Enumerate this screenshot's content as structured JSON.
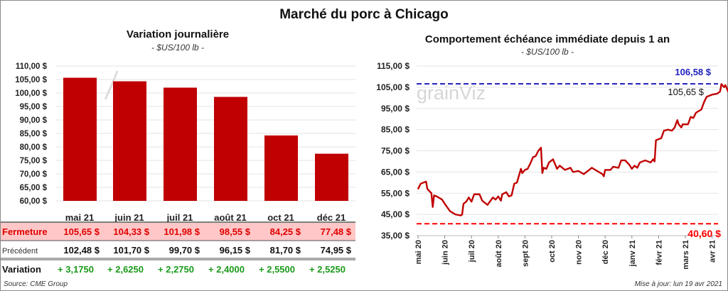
{
  "title": "Marché du porc à Chicago",
  "colors": {
    "bar": "#c00000",
    "line": "#c00000",
    "high": "#1f1fbf",
    "low": "#ff0000",
    "highlight_row": "#ffc7c7",
    "positive": "#1a9a1a"
  },
  "chart_data": [
    {
      "type": "bar",
      "title": "Variation journalière",
      "subtitle": "- $US/100 lb -",
      "categories": [
        "mai 21",
        "juin 21",
        "juil 21",
        "août 21",
        "oct 21",
        "déc 21"
      ],
      "values": [
        105.65,
        104.33,
        101.98,
        98.55,
        84.25,
        77.48
      ],
      "ylim": [
        60,
        110
      ],
      "yticks": [
        "60,00 $",
        "65,00 $",
        "70,00 $",
        "75,00 $",
        "80,00 $",
        "85,00 $",
        "90,00 $",
        "95,00 $",
        "100,00 $",
        "105,00 $",
        "110,00 $"
      ],
      "grid": true
    },
    {
      "type": "line",
      "title": "Comportement  échéance immédiate depuis 1 an",
      "subtitle": "- $US/100 lb -",
      "ylim": [
        35,
        115
      ],
      "yticks": [
        "35,00 $",
        "45,00 $",
        "55,00 $",
        "65,00 $",
        "75,00 $",
        "85,00 $",
        "95,00 $",
        "105,00 $",
        "115,00 $"
      ],
      "xticks": [
        "mai 20",
        "juin 20",
        "juil 20",
        "août 20",
        "sept 20",
        "oct 20",
        "nov 20",
        "déc 20",
        "janv 21",
        "févr 21",
        "mars 21",
        "avr 21"
      ],
      "x_unit": "months since mai 20",
      "x": [
        0,
        0.1,
        0.3,
        0.35,
        0.5,
        0.55,
        0.6,
        0.7,
        0.9,
        1.0,
        1.2,
        1.4,
        1.6,
        1.65,
        1.7,
        1.8,
        1.9,
        2.0,
        2.1,
        2.3,
        2.4,
        2.6,
        2.8,
        2.9,
        3.0,
        3.1,
        3.15,
        3.3,
        3.4,
        3.5,
        3.6,
        3.7,
        3.85,
        3.9,
        4.0,
        4.1,
        4.2,
        4.3,
        4.4,
        4.5,
        4.6,
        4.65,
        4.7,
        4.8,
        4.9,
        5.05,
        5.2,
        5.3,
        5.5,
        5.7,
        5.8,
        6.0,
        6.2,
        6.4,
        6.5,
        6.7,
        6.9,
        6.95,
        7.0,
        7.2,
        7.3,
        7.5,
        7.6,
        7.75,
        7.9,
        8.0,
        8.1,
        8.2,
        8.3,
        8.5,
        8.7,
        8.8,
        8.85,
        8.9,
        9.1,
        9.2,
        9.35,
        9.5,
        9.6,
        9.7,
        9.75,
        9.85,
        9.9,
        10.1,
        10.2,
        10.3,
        10.4,
        10.6,
        10.7,
        10.8,
        11.0,
        11.2,
        11.3,
        11.35,
        11.45,
        11.5,
        11.6,
        11.7
      ],
      "y": [
        57,
        59.5,
        60.5,
        57,
        55,
        48.5,
        54,
        53.5,
        52,
        50,
        46.5,
        45,
        44.5,
        45,
        50,
        51,
        53,
        51,
        54.5,
        54.5,
        51.5,
        49.5,
        53,
        52,
        53.5,
        51.5,
        54.5,
        55.5,
        53.5,
        54,
        59.5,
        60,
        66.5,
        64.5,
        66,
        66.5,
        69,
        72,
        72.5,
        75,
        76.5,
        64.5,
        67,
        66.5,
        69.5,
        71,
        66.5,
        68,
        66,
        67,
        65,
        65.5,
        64,
        66,
        67,
        65.5,
        64,
        63,
        66,
        66,
        67.5,
        67,
        70.5,
        70.5,
        68.5,
        66.5,
        68,
        67,
        69.5,
        70.5,
        69.5,
        71,
        70,
        80,
        81,
        84.5,
        85,
        84.5,
        86,
        89.5,
        87.5,
        86,
        87.5,
        87.5,
        91,
        90.5,
        93,
        94.5,
        98,
        100.5,
        101.5,
        102,
        103,
        106.5,
        105,
        106,
        103,
        105.65
      ],
      "reference_lines": [
        {
          "label": "106,58 $",
          "value": 106.58
        },
        {
          "label": "40,60 $",
          "value": 40.6
        }
      ],
      "last_label": "105,65 $",
      "grid": true
    }
  ],
  "table": {
    "rows": [
      {
        "label": "Fermeture",
        "cells": [
          "105,65  $",
          "104,33  $",
          "101,98  $",
          "98,55  $",
          "84,25  $",
          "77,48  $"
        ]
      },
      {
        "label": "Précédent",
        "cells": [
          "102,48  $",
          "101,70  $",
          "99,70  $",
          "96,15  $",
          "81,70  $",
          "74,95  $"
        ]
      },
      {
        "label": "Variation",
        "cells": [
          "+ 3,1750",
          "+ 2,6250",
          "+ 2,2750",
          "+ 2,4000",
          "+ 2,5500",
          "+ 2,5250"
        ]
      }
    ]
  },
  "watermark": "grainViz",
  "source": "Source: CME Group",
  "updated": "Mise à jour: lun 19 avr 2021"
}
